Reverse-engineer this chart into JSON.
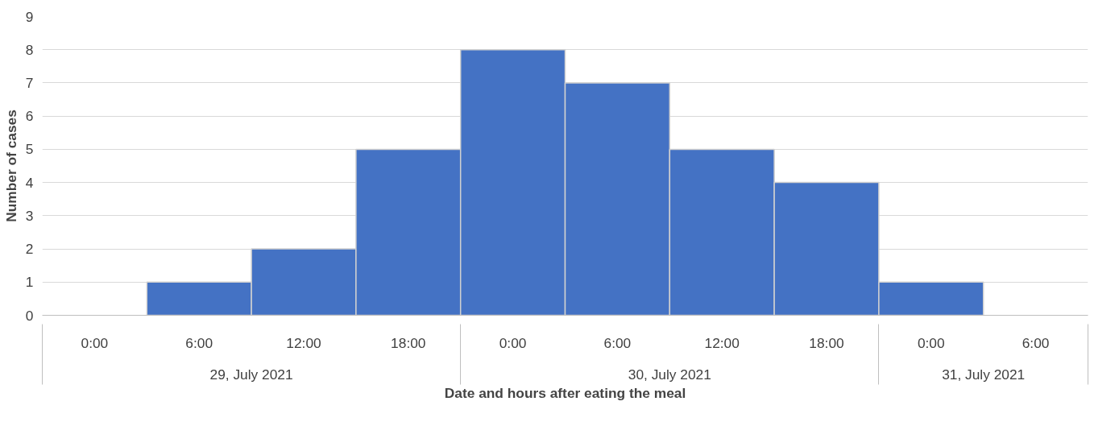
{
  "chart_data": {
    "type": "bar",
    "xlabel": "Date and hours after eating the meal",
    "ylabel": "Number of cases",
    "categories": [
      "0:00",
      "6:00",
      "12:00",
      "18:00",
      "0:00",
      "6:00",
      "12:00",
      "18:00",
      "0:00",
      "6:00"
    ],
    "values": [
      0,
      1,
      2,
      5,
      8,
      7,
      5,
      4,
      1,
      0
    ],
    "color": "#4472c4",
    "ylim": [
      0,
      9
    ],
    "yticks": [
      0,
      1,
      2,
      3,
      4,
      5,
      6,
      7,
      8,
      9
    ],
    "grid": "y",
    "annotations": [
      "29, July 2021",
      "30, July 2021",
      "31, July 2021"
    ]
  }
}
